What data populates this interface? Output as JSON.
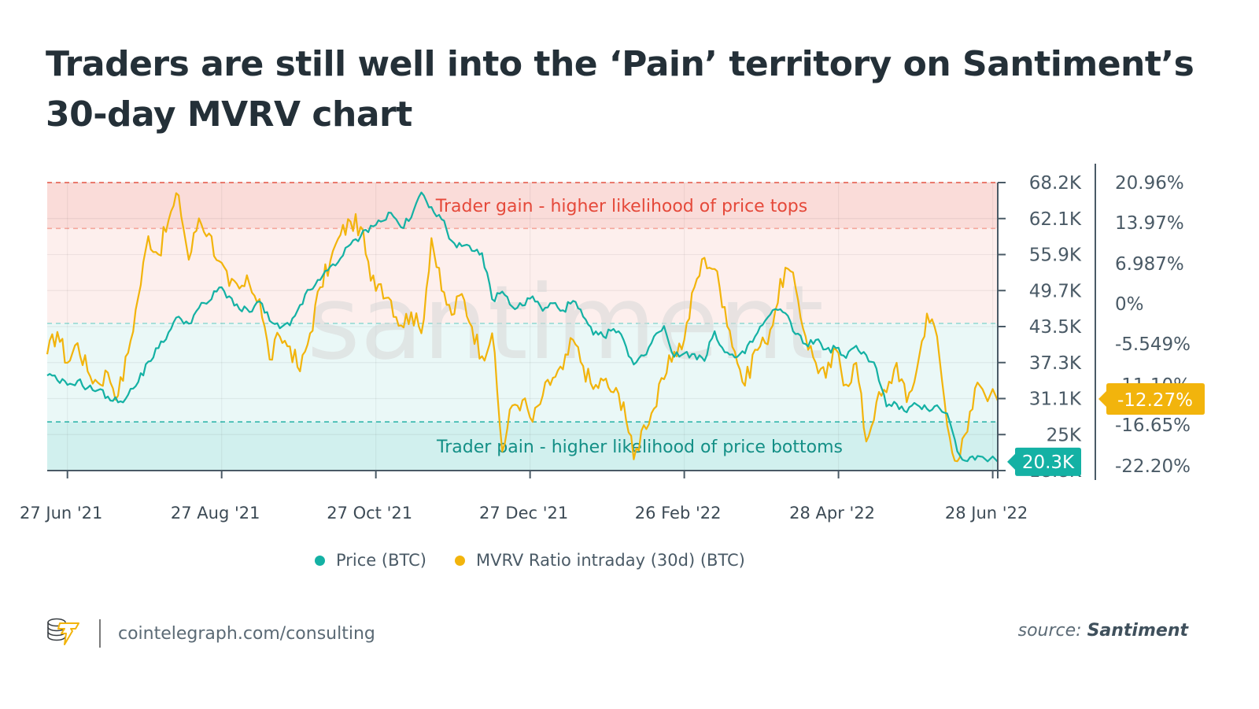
{
  "title": "Traders are still well into the ‘Pain’ territory on Santiment’s 30-day MVRV chart",
  "watermark": "santiment",
  "footer": {
    "url": "cointelegraph.com/consulting",
    "source_prefix": "source:",
    "source_name": "Santiment",
    "logo_icon": "cointelegraph-logo-icon"
  },
  "colors": {
    "price": "#14b1a4",
    "mvrv": "#f2b40c",
    "gain_band_strong": "#fadcd9",
    "gain_band_light": "#fdefed",
    "pain_band_light": "#eaf8f7",
    "pain_band_strong": "#d1f0ee",
    "gain_text": "#e5493a",
    "pain_text": "#138f86",
    "axis": "#4a5a66"
  },
  "chart_data": {
    "type": "line",
    "title": "Traders are still well into the ‘Pain’ territory on Santiment’s 30-day MVRV chart",
    "xlabel": "",
    "x_ticks": [
      "27 Jun '21",
      "27 Aug '21",
      "27 Oct '21",
      "27 Dec '21",
      "26 Feb '22",
      "28 Apr '22",
      "28 Jun '22"
    ],
    "x_range": [
      "2021-06-19",
      "2022-06-30"
    ],
    "y_left": {
      "label": "Price (BTC)",
      "ticks": [
        "68.2K",
        "62.1K",
        "55.9K",
        "49.7K",
        "43.5K",
        "37.3K",
        "31.1K",
        "25K",
        "18.8K"
      ],
      "range": [
        18800,
        68200
      ]
    },
    "y_right": {
      "label": "MVRV Ratio intraday (30d) (BTC)",
      "ticks": [
        "20.96%",
        "13.97%",
        "6.987%",
        "0%",
        "-5.549%",
        "-11.10%",
        "-16.65%",
        "-22.20%"
      ],
      "range": [
        -22.2,
        20.96
      ]
    },
    "bands": [
      {
        "name": "Trader gain - higher likelihood of price tops",
        "from_pct": 13.97,
        "to_pct": 20.96,
        "kind": "gain-strong"
      },
      {
        "name": "",
        "from_pct": -0.5,
        "to_pct": 13.97,
        "kind": "gain-light"
      },
      {
        "name": "",
        "from_pct": -15.5,
        "to_pct": -0.5,
        "kind": "pain-light"
      },
      {
        "name": "Trader pain - higher likelihood of price bottoms",
        "from_pct": -22.2,
        "to_pct": -15.5,
        "kind": "pain-strong"
      }
    ],
    "end_labels": {
      "price": "20.3K",
      "mvrv": "-12.27%"
    },
    "legend": {
      "position": "bottom-center",
      "entries": [
        "Price (BTC)",
        "MVRV Ratio intraday (30d) (BTC)"
      ]
    },
    "grid": true,
    "series": [
      {
        "name": "Price (BTC)",
        "axis": "left",
        "unit": "USD",
        "x_days": [
          0,
          4,
          8,
          12,
          16,
          20,
          24,
          28,
          32,
          36,
          40,
          44,
          48,
          52,
          56,
          60,
          64,
          68,
          72,
          76,
          80,
          84,
          88,
          92,
          96,
          100,
          104,
          108,
          112,
          116,
          120,
          124,
          128,
          132,
          136,
          140,
          144,
          148,
          152,
          156,
          160,
          164,
          168,
          172,
          176,
          180,
          184,
          188,
          192,
          196,
          200,
          204,
          208,
          212,
          216,
          220,
          224,
          228,
          232,
          236,
          240,
          244,
          248,
          252,
          256,
          260,
          264,
          268,
          272,
          276,
          280,
          284,
          288,
          292,
          296,
          300,
          304,
          308,
          312,
          316,
          320,
          324,
          328,
          332,
          336,
          340,
          344,
          348,
          352,
          356,
          360,
          364,
          368,
          376
        ],
        "values": [
          35100,
          34300,
          33500,
          34200,
          33000,
          32600,
          31500,
          30500,
          31800,
          34000,
          37500,
          39800,
          42500,
          45200,
          44000,
          46700,
          47800,
          50200,
          48700,
          46500,
          46000,
          47800,
          44500,
          43200,
          43700,
          47200,
          49800,
          51500,
          53800,
          55200,
          57600,
          59000,
          60800,
          61500,
          63000,
          60500,
          62200,
          66500,
          64000,
          61900,
          58200,
          57300,
          56500,
          56100,
          48200,
          49500,
          46900,
          47100,
          48700,
          46200,
          47500,
          46300,
          47900,
          45200,
          42100,
          41800,
          43100,
          41200,
          37000,
          38500,
          41800,
          43600,
          38300,
          38900,
          38800,
          37600,
          42700,
          39100,
          38200,
          38900,
          41800,
          44500,
          46500,
          45800,
          42200,
          40500,
          41200,
          39600,
          39800,
          38100,
          40200,
          38600,
          36300,
          29800,
          30200,
          28800,
          30100,
          29400,
          30000,
          28600,
          22100,
          20400,
          21300,
          20300
        ]
      },
      {
        "name": "MVRV Ratio intraday (30d) (BTC)",
        "axis": "right",
        "unit": "%",
        "x_days": [
          0,
          4,
          8,
          12,
          16,
          20,
          24,
          28,
          32,
          36,
          40,
          44,
          48,
          52,
          56,
          60,
          64,
          68,
          72,
          76,
          80,
          84,
          88,
          92,
          96,
          100,
          104,
          108,
          112,
          116,
          120,
          124,
          128,
          132,
          136,
          140,
          144,
          148,
          152,
          156,
          160,
          164,
          168,
          172,
          176,
          180,
          184,
          188,
          192,
          196,
          200,
          204,
          208,
          212,
          216,
          220,
          224,
          228,
          232,
          236,
          240,
          244,
          248,
          252,
          256,
          260,
          264,
          268,
          272,
          276,
          280,
          284,
          288,
          292,
          296,
          300,
          304,
          308,
          312,
          316,
          320,
          324,
          328,
          332,
          336,
          340,
          344,
          348,
          352,
          356,
          360,
          364,
          368,
          376
        ],
        "values": [
          -5.2,
          -1.8,
          -6.5,
          -3.5,
          -7.8,
          -9.5,
          -8.0,
          -11.5,
          -5.0,
          3.5,
          12.8,
          10.0,
          15.2,
          19.0,
          9.2,
          15.5,
          13.2,
          9.0,
          5.2,
          4.8,
          5.5,
          3.2,
          -6.0,
          -2.5,
          -4.0,
          -7.8,
          -2.0,
          5.0,
          9.0,
          13.0,
          15.0,
          14.2,
          6.0,
          5.5,
          3.0,
          -0.8,
          1.2,
          -2.0,
          12.5,
          4.5,
          0.8,
          4.0,
          -1.0,
          -5.5,
          -2.0,
          -20.0,
          -13.0,
          -12.2,
          -15.5,
          -11.5,
          -8.8,
          -7.5,
          -3.0,
          -7.0,
          -10.5,
          -9.2,
          -11.0,
          -12.5,
          -21.2,
          -16.0,
          -13.5,
          -9.0,
          -4.8,
          -3.0,
          5.0,
          9.5,
          7.8,
          2.0,
          -4.8,
          -10.0,
          -4.5,
          -3.5,
          1.5,
          8.0,
          5.0,
          -2.5,
          -6.5,
          -8.8,
          -4.5,
          -9.8,
          -6.5,
          -18.5,
          -12.5,
          -11.0,
          -6.5,
          -12.5,
          -7.5,
          1.0,
          -2.5,
          -16.0,
          -21.5,
          -17.0,
          -9.5,
          -12.27
        ]
      }
    ]
  }
}
